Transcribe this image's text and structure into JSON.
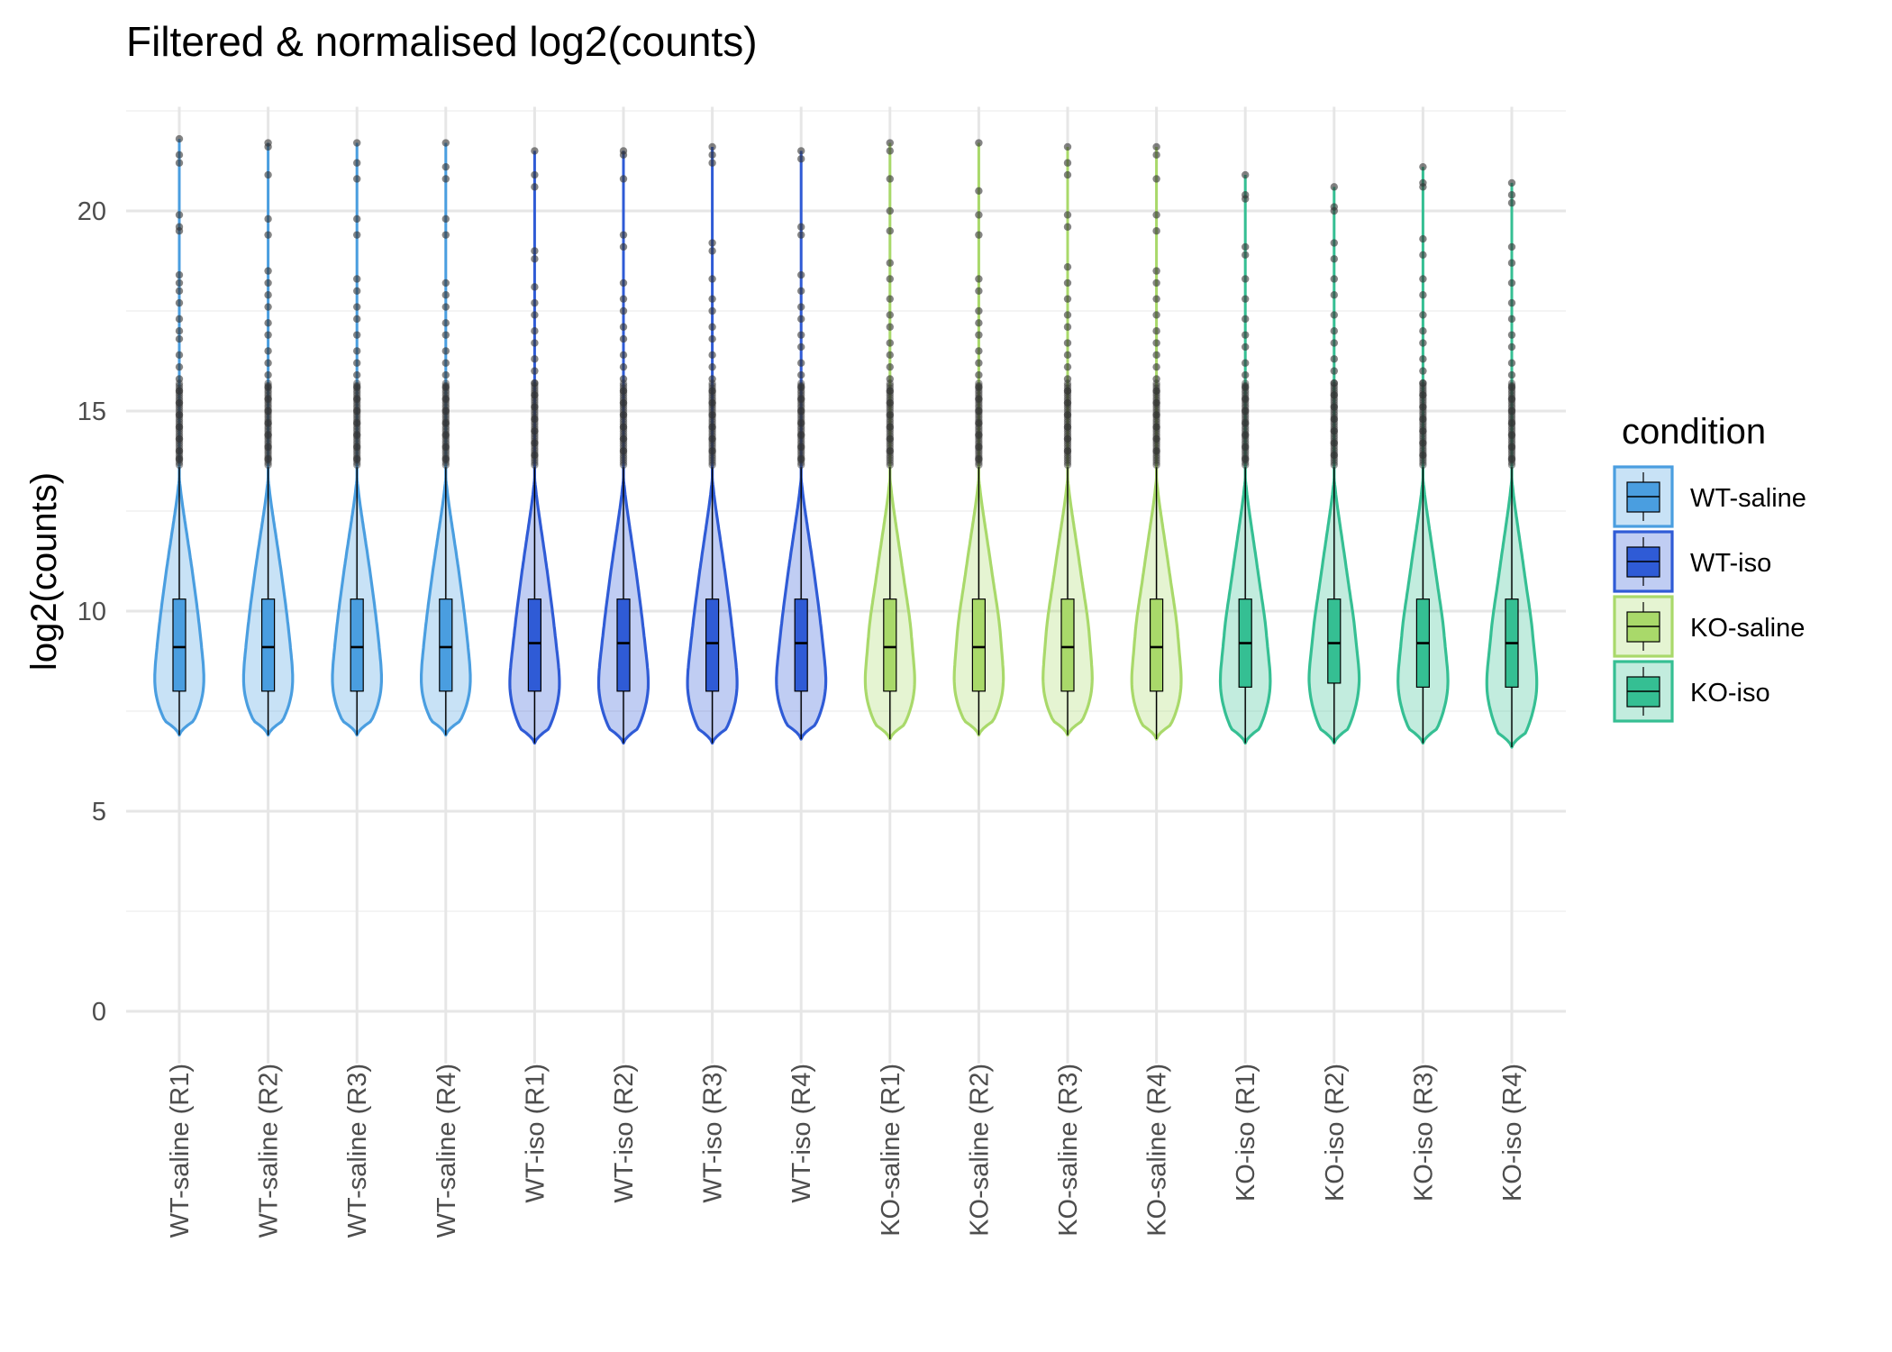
{
  "chart_data": {
    "type": "violin",
    "title": "Filtered & normalised log2(counts)",
    "xlabel": "",
    "ylabel": "log2(counts)",
    "ylim": [
      -1.3,
      22.6
    ],
    "yticks": [
      0,
      5,
      10,
      15,
      20
    ],
    "grid": true,
    "legend": {
      "title": "condition",
      "position": "right",
      "entries": [
        {
          "label": "WT-saline",
          "color": "#4a9ee0"
        },
        {
          "label": "WT-iso",
          "color": "#2f5bd6"
        },
        {
          "label": "KO-saline",
          "color": "#a9d96a"
        },
        {
          "label": "KO-iso",
          "color": "#35bf93"
        }
      ]
    },
    "categories": [
      "WT-saline (R1)",
      "WT-saline (R2)",
      "WT-saline (R3)",
      "WT-saline (R4)",
      "WT-iso (R1)",
      "WT-iso (R2)",
      "WT-iso (R3)",
      "WT-iso (R4)",
      "KO-saline (R1)",
      "KO-saline (R2)",
      "KO-saline (R3)",
      "KO-saline (R4)",
      "KO-iso (R1)",
      "KO-iso (R2)",
      "KO-iso (R3)",
      "KO-iso (R4)"
    ],
    "condition_of_sample": [
      0,
      0,
      0,
      0,
      1,
      1,
      1,
      1,
      2,
      2,
      2,
      2,
      3,
      3,
      3,
      3
    ],
    "series": [
      {
        "min": 6.9,
        "q1": 8.0,
        "median": 9.1,
        "q3": 10.3,
        "upper_whisker": 13.6,
        "max": 21.8,
        "outliers": [
          21.8,
          21.4,
          21.2,
          19.9,
          19.6,
          19.5,
          18.4,
          18.2,
          18.0,
          17.7,
          17.3,
          17.0,
          16.8,
          16.4,
          16.1,
          15.8,
          15.5,
          15.2,
          14.9,
          14.6,
          14.3,
          14.0,
          13.8
        ]
      },
      {
        "min": 6.9,
        "q1": 8.0,
        "median": 9.1,
        "q3": 10.3,
        "upper_whisker": 13.6,
        "max": 21.7,
        "outliers": [
          21.7,
          21.6,
          20.9,
          19.8,
          19.4,
          18.5,
          18.2,
          17.9,
          17.6,
          17.2,
          16.9,
          16.5,
          16.2,
          15.9,
          15.6,
          15.3,
          15.0,
          14.7,
          14.4,
          14.1,
          13.8
        ]
      },
      {
        "min": 6.9,
        "q1": 8.0,
        "median": 9.1,
        "q3": 10.3,
        "upper_whisker": 13.6,
        "max": 21.7,
        "outliers": [
          21.7,
          21.2,
          20.8,
          19.8,
          19.4,
          18.3,
          18.0,
          17.6,
          17.3,
          16.9,
          16.5,
          16.2,
          15.9,
          15.6,
          15.3,
          15.0,
          14.7,
          14.4,
          14.1,
          13.8
        ]
      },
      {
        "min": 6.9,
        "q1": 8.0,
        "median": 9.1,
        "q3": 10.3,
        "upper_whisker": 13.6,
        "max": 21.7,
        "outliers": [
          21.7,
          21.1,
          20.8,
          19.8,
          19.4,
          18.2,
          17.9,
          17.6,
          17.2,
          16.9,
          16.5,
          16.2,
          15.9,
          15.6,
          15.3,
          15.0,
          14.7,
          14.4,
          14.1,
          13.8
        ]
      },
      {
        "min": 6.7,
        "q1": 8.0,
        "median": 9.2,
        "q3": 10.3,
        "upper_whisker": 13.6,
        "max": 21.5,
        "outliers": [
          21.5,
          20.9,
          20.6,
          19.0,
          18.8,
          18.1,
          17.7,
          17.4,
          17.0,
          16.7,
          16.3,
          16.0,
          15.7,
          15.4,
          15.1,
          14.8,
          14.5,
          14.2,
          13.9
        ]
      },
      {
        "min": 6.7,
        "q1": 8.0,
        "median": 9.2,
        "q3": 10.3,
        "upper_whisker": 13.6,
        "max": 21.5,
        "outliers": [
          21.5,
          21.4,
          20.8,
          19.4,
          19.1,
          18.2,
          17.8,
          17.5,
          17.1,
          16.8,
          16.4,
          16.1,
          15.8,
          15.5,
          15.2,
          14.9,
          14.6,
          14.3,
          14.0
        ]
      },
      {
        "min": 6.7,
        "q1": 8.0,
        "median": 9.2,
        "q3": 10.3,
        "upper_whisker": 13.6,
        "max": 21.6,
        "outliers": [
          21.6,
          21.4,
          21.2,
          19.2,
          19.0,
          18.3,
          17.8,
          17.5,
          17.1,
          16.8,
          16.4,
          16.1,
          15.8,
          15.5,
          15.2,
          14.9,
          14.6,
          14.3,
          14.0
        ]
      },
      {
        "min": 6.8,
        "q1": 8.0,
        "median": 9.2,
        "q3": 10.3,
        "upper_whisker": 13.6,
        "max": 21.5,
        "outliers": [
          21.5,
          21.3,
          19.6,
          19.4,
          18.4,
          18.0,
          17.6,
          17.3,
          16.9,
          16.6,
          16.2,
          15.9,
          15.6,
          15.3,
          15.0,
          14.7,
          14.4,
          14.1,
          13.8
        ]
      },
      {
        "min": 6.8,
        "q1": 8.0,
        "median": 9.1,
        "q3": 10.3,
        "upper_whisker": 13.6,
        "max": 21.7,
        "outliers": [
          21.7,
          21.5,
          20.8,
          20.0,
          19.5,
          18.7,
          18.3,
          17.8,
          17.4,
          17.1,
          16.7,
          16.4,
          16.1,
          15.8,
          15.5,
          15.2,
          14.9,
          14.6,
          14.3,
          14.0
        ]
      },
      {
        "min": 6.9,
        "q1": 8.0,
        "median": 9.1,
        "q3": 10.3,
        "upper_whisker": 13.6,
        "max": 21.7,
        "outliers": [
          21.7,
          20.5,
          19.9,
          19.4,
          18.3,
          18.0,
          17.5,
          17.2,
          16.9,
          16.5,
          16.2,
          15.9,
          15.6,
          15.3,
          15.0,
          14.7,
          14.4,
          14.1,
          13.8
        ]
      },
      {
        "min": 6.9,
        "q1": 8.0,
        "median": 9.1,
        "q3": 10.3,
        "upper_whisker": 13.6,
        "max": 21.6,
        "outliers": [
          21.6,
          21.2,
          20.9,
          19.9,
          19.6,
          18.6,
          18.2,
          17.8,
          17.4,
          17.1,
          16.7,
          16.4,
          16.1,
          15.8,
          15.5,
          15.2,
          14.9,
          14.6,
          14.3,
          14.0
        ]
      },
      {
        "min": 6.8,
        "q1": 8.0,
        "median": 9.1,
        "q3": 10.3,
        "upper_whisker": 13.6,
        "max": 21.6,
        "outliers": [
          21.6,
          21.4,
          20.8,
          19.9,
          19.5,
          18.5,
          18.2,
          17.8,
          17.4,
          17.0,
          16.7,
          16.4,
          16.1,
          15.8,
          15.5,
          15.2,
          14.9,
          14.6,
          14.3,
          14.0
        ]
      },
      {
        "min": 6.7,
        "q1": 8.1,
        "median": 9.2,
        "q3": 10.3,
        "upper_whisker": 13.6,
        "max": 20.9,
        "outliers": [
          20.9,
          20.4,
          20.3,
          19.1,
          18.9,
          18.3,
          17.8,
          17.3,
          16.9,
          16.6,
          16.2,
          15.9,
          15.6,
          15.3,
          15.0,
          14.7,
          14.4,
          14.1,
          13.8
        ]
      },
      {
        "min": 6.7,
        "q1": 8.2,
        "median": 9.2,
        "q3": 10.3,
        "upper_whisker": 13.6,
        "max": 20.6,
        "outliers": [
          20.6,
          20.1,
          20.0,
          19.2,
          18.8,
          18.3,
          17.9,
          17.4,
          17.0,
          16.7,
          16.3,
          16.0,
          15.7,
          15.4,
          15.1,
          14.8,
          14.5,
          14.2,
          13.9
        ]
      },
      {
        "min": 6.7,
        "q1": 8.1,
        "median": 9.2,
        "q3": 10.3,
        "upper_whisker": 13.6,
        "max": 21.1,
        "outliers": [
          21.1,
          20.7,
          20.6,
          19.3,
          18.9,
          18.3,
          17.9,
          17.4,
          17.0,
          16.7,
          16.3,
          16.0,
          15.7,
          15.4,
          15.1,
          14.8,
          14.5,
          14.2,
          13.9
        ]
      },
      {
        "min": 6.6,
        "q1": 8.1,
        "median": 9.2,
        "q3": 10.3,
        "upper_whisker": 13.6,
        "max": 20.7,
        "outliers": [
          20.7,
          20.4,
          20.2,
          19.1,
          18.7,
          18.2,
          17.7,
          17.3,
          16.9,
          16.6,
          16.2,
          15.9,
          15.6,
          15.3,
          15.0,
          14.7,
          14.4,
          14.1,
          13.8
        ]
      }
    ]
  }
}
